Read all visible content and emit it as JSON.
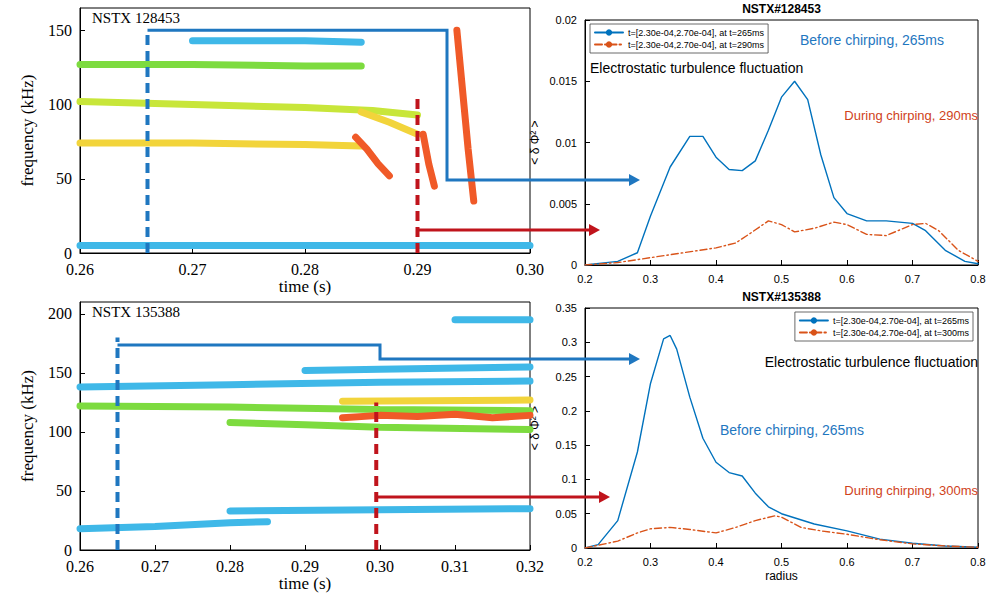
{
  "chart_data": [
    {
      "type": "line",
      "title": "NSTX 128453",
      "x_label": "time (s)",
      "y_label": "frequency (kHz)",
      "xlim": [
        0.26,
        0.3
      ],
      "xticks": [
        0.26,
        0.27,
        0.28,
        0.29,
        {
          "value": 0.3,
          "label": "0.30"
        }
      ],
      "ylim": [
        0,
        165
      ],
      "yticks": [
        0,
        50,
        100,
        150
      ],
      "grid": false,
      "series": [
        {
          "color": "#3fb8e8",
          "x": [
            0.26,
            0.27,
            0.28,
            0.29,
            0.3
          ],
          "values": [
            5,
            5,
            5,
            5,
            5
          ]
        },
        {
          "color": "#7ddb3f",
          "x": [
            0.26,
            0.27,
            0.28,
            0.285
          ],
          "values": [
            127,
            127,
            126,
            126
          ]
        },
        {
          "color": "#3fb8e8",
          "x": [
            0.27,
            0.28,
            0.285
          ],
          "values": [
            143,
            143,
            142
          ]
        },
        {
          "color": "#c8e63a",
          "x": [
            0.26,
            0.27,
            0.28,
            0.286,
            0.29
          ],
          "values": [
            102,
            100,
            98,
            96,
            93
          ]
        },
        {
          "color": "#f2d43b",
          "x": [
            0.26,
            0.27,
            0.28,
            0.285
          ],
          "values": [
            74,
            74,
            73,
            72
          ]
        },
        {
          "color": "#f2d43b",
          "x": [
            0.285,
            0.2875,
            0.29
          ],
          "values": [
            95,
            88,
            80
          ]
        },
        {
          "color": "#f05a28",
          "x": [
            0.2845,
            0.2855,
            0.2865,
            0.2875
          ],
          "values": [
            78,
            70,
            60,
            52
          ]
        },
        {
          "color": "#f05a28",
          "x": [
            0.2905,
            0.291,
            0.2915
          ],
          "values": [
            80,
            60,
            45
          ]
        },
        {
          "color": "#f05a28",
          "x": [
            0.2935,
            0.294,
            0.2945,
            0.295
          ],
          "values": [
            150,
            110,
            70,
            35
          ]
        }
      ],
      "time_marks": [
        {
          "x": 0.266,
          "values": [
            0,
            150
          ],
          "color": "#1f77c0",
          "line_style": "dashed"
        },
        {
          "x": 0.29,
          "values": [
            0,
            105
          ],
          "color": "#c0141c",
          "line_style": "dashed"
        }
      ]
    },
    {
      "type": "line",
      "title": "NSTX 135388",
      "x_label": "time (s)",
      "y_label": "frequency (kHz)",
      "xlim": [
        0.26,
        0.32
      ],
      "xticks": [
        0.26,
        0.27,
        0.28,
        0.29,
        {
          "value": 0.3,
          "label": "0.30"
        },
        0.31,
        0.32
      ],
      "ylim": [
        0,
        210
      ],
      "yticks": [
        0,
        50,
        100,
        150,
        200
      ],
      "grid": false,
      "series": [
        {
          "color": "#3fb8e8",
          "x": [
            0.26,
            0.27,
            0.28,
            0.285
          ],
          "values": [
            18,
            20,
            23,
            24
          ]
        },
        {
          "color": "#3fb8e8",
          "x": [
            0.26,
            0.28,
            0.3,
            0.32
          ],
          "values": [
            138,
            140,
            142,
            143
          ]
        },
        {
          "color": "#7ddb3f",
          "x": [
            0.26,
            0.28,
            0.3,
            0.32
          ],
          "values": [
            122,
            121,
            119,
            118
          ]
        },
        {
          "color": "#7ddb3f",
          "x": [
            0.28,
            0.29,
            0.3,
            0.32
          ],
          "values": [
            108,
            106,
            104,
            102
          ]
        },
        {
          "color": "#3fb8e8",
          "x": [
            0.29,
            0.3,
            0.32
          ],
          "values": [
            152,
            153,
            155
          ]
        },
        {
          "color": "#3fb8e8",
          "x": [
            0.28,
            0.3,
            0.32
          ],
          "values": [
            33,
            34,
            35
          ]
        },
        {
          "color": "#f2d43b",
          "x": [
            0.295,
            0.32
          ],
          "values": [
            126,
            127
          ]
        },
        {
          "color": "#f05a28",
          "x": [
            0.295,
            0.3,
            0.305,
            0.31,
            0.315,
            0.32
          ],
          "values": [
            112,
            114,
            113,
            115,
            112,
            114
          ]
        },
        {
          "color": "#3fb8e8",
          "x": [
            0.31,
            0.32
          ],
          "values": [
            195,
            195
          ]
        }
      ],
      "time_marks": [
        {
          "x": 0.265,
          "values": [
            0,
            180
          ],
          "color": "#1f77c0",
          "line_style": "dashed"
        },
        {
          "x": 0.2995,
          "values": [
            0,
            125
          ],
          "color": "#c0141c",
          "line_style": "dashed"
        }
      ]
    },
    {
      "type": "line",
      "title": "NSTX#128453",
      "y_label": "< δ Φ² >",
      "xlim": [
        0.2,
        0.8
      ],
      "xticks": [
        0.2,
        0.3,
        0.4,
        0.5,
        0.6,
        0.7,
        0.8
      ],
      "ylim": [
        0,
        0.02
      ],
      "yticks": [
        0,
        0.005,
        0.01,
        0.015,
        0.02
      ],
      "grid": false,
      "legend": "upper left",
      "series": [
        {
          "name": "t=[2.30e-04,2.70e-04], at t=265ms",
          "color": "#0072bd",
          "line_style": "solid",
          "x": [
            0.2,
            0.25,
            0.28,
            0.3,
            0.33,
            0.36,
            0.38,
            0.4,
            0.42,
            0.44,
            0.46,
            0.48,
            0.5,
            0.52,
            0.54,
            0.56,
            0.58,
            0.6,
            0.63,
            0.66,
            0.68,
            0.7,
            0.72,
            0.75,
            0.78,
            0.8
          ],
          "values": [
            0,
            0.0003,
            0.001,
            0.004,
            0.008,
            0.0105,
            0.0105,
            0.0088,
            0.0078,
            0.0077,
            0.0085,
            0.011,
            0.0137,
            0.015,
            0.0135,
            0.009,
            0.0055,
            0.0042,
            0.0036,
            0.0036,
            0.0035,
            0.0034,
            0.0028,
            0.0012,
            0.0003,
            0.0001
          ]
        },
        {
          "name": "t=[2.30e-04,2.70e-04], at t=290ms",
          "color": "#d95319",
          "line_style": "dashdot",
          "x": [
            0.2,
            0.25,
            0.3,
            0.35,
            0.4,
            0.43,
            0.45,
            0.48,
            0.5,
            0.52,
            0.55,
            0.58,
            0.6,
            0.63,
            0.66,
            0.7,
            0.72,
            0.74,
            0.77,
            0.8
          ],
          "values": [
            0,
            0.0002,
            0.0006,
            0.001,
            0.0014,
            0.0018,
            0.0025,
            0.0036,
            0.0033,
            0.0027,
            0.003,
            0.0035,
            0.0033,
            0.0025,
            0.0024,
            0.0033,
            0.0034,
            0.0028,
            0.0012,
            0.0003
          ]
        }
      ],
      "annotations": [
        {
          "text": "Electrostatic turbulence fluctuation",
          "color": "#000000"
        },
        {
          "text": "Before chirping, 265ms",
          "color": "#1f77c0"
        },
        {
          "text": "During chirping, 290ms",
          "color": "#d0421b"
        }
      ]
    },
    {
      "type": "line",
      "title": "NSTX#135388",
      "x_label": "radius",
      "y_label": "< δ Φ² >",
      "xlim": [
        0.2,
        0.8
      ],
      "xticks": [
        0.2,
        0.3,
        0.4,
        0.5,
        0.6,
        0.7,
        0.8
      ],
      "ylim": [
        0,
        0.35
      ],
      "yticks": [
        0,
        0.05,
        0.1,
        0.15,
        0.2,
        0.25,
        0.3,
        0.35
      ],
      "grid": false,
      "legend": "upper right",
      "series": [
        {
          "name": "t=[2.30e-04,2.70e-04], at t=265ms",
          "color": "#0072bd",
          "line_style": "solid",
          "x": [
            0.2,
            0.22,
            0.25,
            0.28,
            0.3,
            0.32,
            0.33,
            0.34,
            0.36,
            0.38,
            0.4,
            0.42,
            0.44,
            0.46,
            0.48,
            0.5,
            0.55,
            0.6,
            0.65,
            0.7,
            0.75,
            0.8
          ],
          "values": [
            0,
            0.005,
            0.04,
            0.14,
            0.24,
            0.305,
            0.31,
            0.29,
            0.22,
            0.16,
            0.125,
            0.11,
            0.105,
            0.08,
            0.06,
            0.05,
            0.035,
            0.025,
            0.013,
            0.007,
            0.003,
            0.001
          ]
        },
        {
          "name": "t=[2.30e-04,2.70e-04], at t=300ms",
          "color": "#d95319",
          "line_style": "dashdot",
          "x": [
            0.2,
            0.25,
            0.28,
            0.3,
            0.33,
            0.36,
            0.4,
            0.43,
            0.46,
            0.49,
            0.5,
            0.53,
            0.56,
            0.6,
            0.65,
            0.7,
            0.75,
            0.8
          ],
          "values": [
            0,
            0.01,
            0.022,
            0.028,
            0.03,
            0.027,
            0.022,
            0.03,
            0.04,
            0.047,
            0.045,
            0.03,
            0.025,
            0.02,
            0.012,
            0.006,
            0.003,
            0.001
          ]
        }
      ],
      "annotations": [
        {
          "text": "Electrostatic turbulence fluctuation",
          "color": "#000000"
        },
        {
          "text": "Before chirping, 265ms",
          "color": "#1f77c0"
        },
        {
          "text": "During chirping, 300ms",
          "color": "#d0421b"
        }
      ]
    }
  ]
}
